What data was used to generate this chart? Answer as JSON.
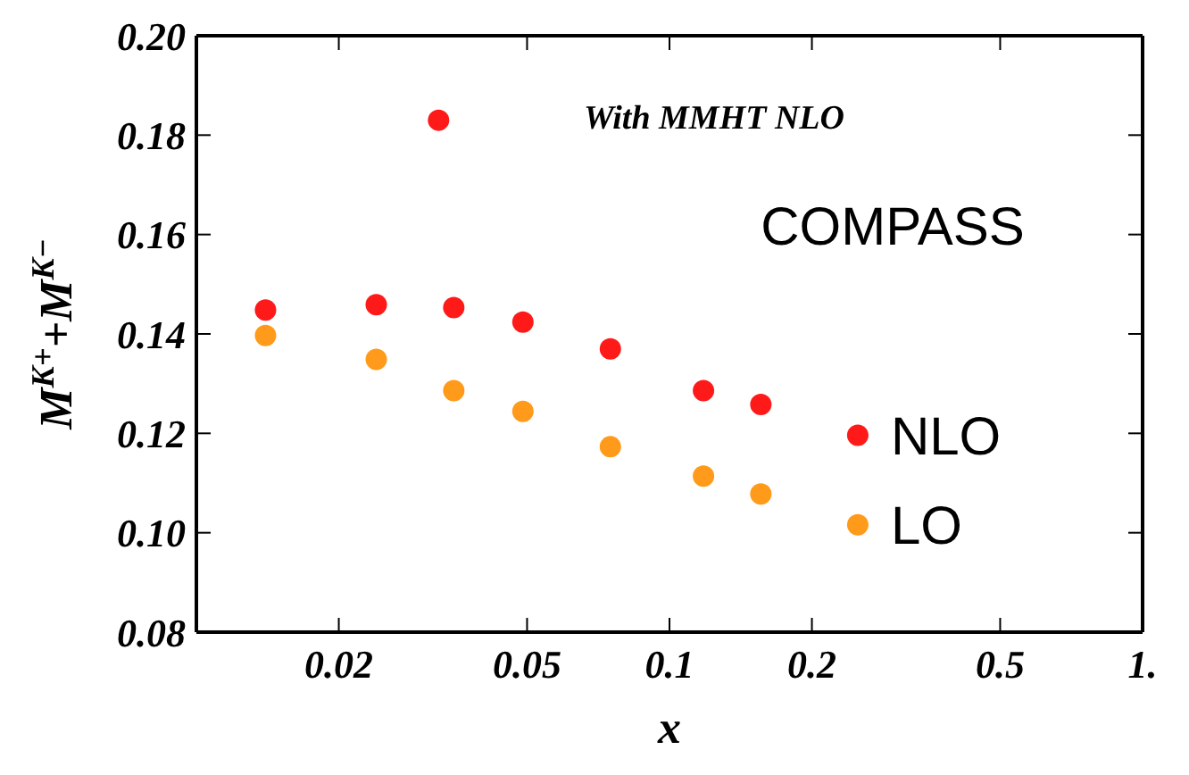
{
  "chart_data": {
    "type": "scatter",
    "xlabel": "x",
    "ylabel": "M$^{K+}$+M$^{K−}$",
    "log": "x",
    "marker": "circle",
    "legend": false,
    "xlim": [
      0.01,
      1
    ],
    "xticks": [
      0.02,
      0.05,
      0.1,
      0.2,
      0.5,
      {
        "value": 1,
        "label": "1."
      }
    ],
    "ylim": [
      0.08,
      0.2
    ],
    "yticks": [
      0.08,
      {
        "value": 0.1,
        "label": "0.10"
      },
      0.12,
      0.14,
      0.16,
      0.18,
      {
        "value": 0.2,
        "label": "0.20"
      }
    ],
    "annotations": [
      "With MMHT NLO",
      "COMPASS"
    ],
    "series": [
      {
        "name": "NLO",
        "color": "#ff1a1a",
        "x": [
          0.014,
          0.024,
          0.0325,
          0.035,
          0.049,
          0.075,
          0.118,
          0.156,
          0.25
        ],
        "values": [
          0.1448,
          0.1459,
          0.183,
          0.1453,
          0.1424,
          0.137,
          0.1286,
          0.1258,
          0.1196
        ]
      },
      {
        "name": "LO",
        "color": "#ff9a1a",
        "x": [
          0.014,
          0.024,
          0.035,
          0.049,
          0.075,
          0.118,
          0.156,
          0.25
        ],
        "values": [
          0.1397,
          0.1349,
          0.1286,
          0.1244,
          0.1173,
          0.1114,
          0.1078,
          0.1016
        ]
      }
    ]
  }
}
